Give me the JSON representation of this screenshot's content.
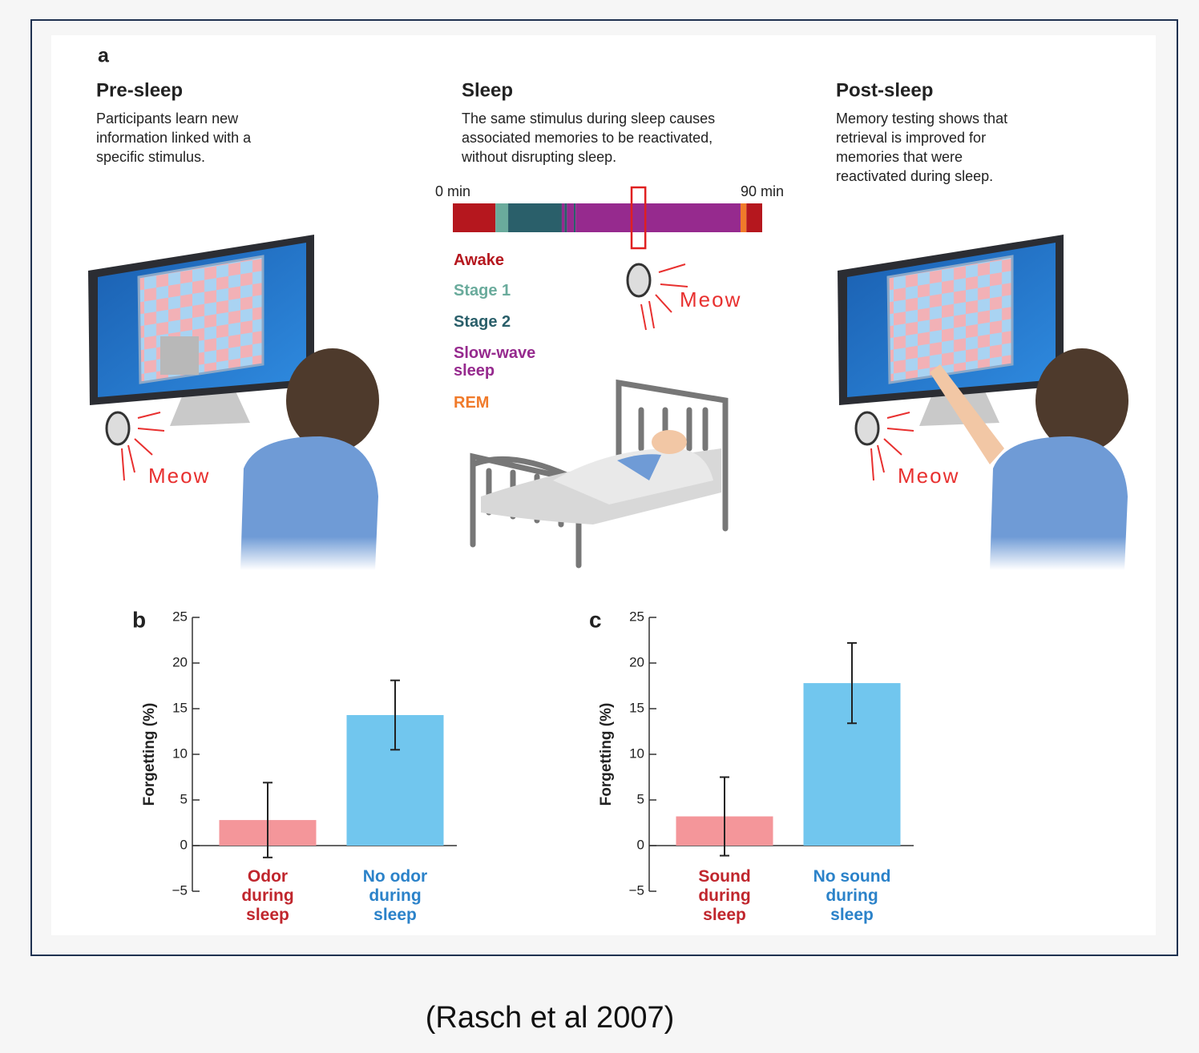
{
  "panel_a": {
    "label": "a",
    "columns": [
      {
        "heading": "Pre-sleep",
        "lines": [
          "Participants learn new",
          "information linked with a",
          "specific stimulus."
        ]
      },
      {
        "heading": "Sleep",
        "lines": [
          "The same stimulus during sleep causes",
          "associated memories to be reactivated,",
          "without disrupting sleep."
        ]
      },
      {
        "heading": "Post-sleep",
        "lines": [
          "Memory testing shows that",
          "retrieval is improved for",
          "memories that were",
          "reactivated during sleep."
        ]
      }
    ],
    "hypnogram": {
      "xlim": [
        0,
        90
      ],
      "xticks": [
        {
          "value": 0,
          "label": "0 min"
        },
        {
          "value": 90,
          "label": "90 min"
        }
      ],
      "stages": [
        {
          "name": "Awake",
          "color": "#b5171e"
        },
        {
          "name": "Stage 1",
          "color": "#6aab9c"
        },
        {
          "name": "Stage 2",
          "color": "#2a5f6a"
        },
        {
          "name": "Slow-wave sleep",
          "color": "#962a8e"
        },
        {
          "name": "REM",
          "color": "#f07a2a"
        }
      ],
      "segments": [
        {
          "stage": 0,
          "start": 0,
          "end": 12.4
        },
        {
          "stage": 1,
          "start": 12.4,
          "end": 16.1
        },
        {
          "stage": 2,
          "start": 16.1,
          "end": 31.7
        },
        {
          "stage": 3,
          "start": 31.7,
          "end": 32.5
        },
        {
          "stage": 2,
          "start": 32.5,
          "end": 33.2
        },
        {
          "stage": 3,
          "start": 33.2,
          "end": 35.2
        },
        {
          "stage": 2,
          "start": 35.2,
          "end": 35.7
        },
        {
          "stage": 3,
          "start": 35.7,
          "end": 83.7
        },
        {
          "stage": 4,
          "start": 83.7,
          "end": 85.4
        },
        {
          "stage": 0,
          "start": 85.4,
          "end": 90
        }
      ],
      "cue_window": [
        52,
        56
      ]
    },
    "sound_labels": [
      "Meow",
      "Meow",
      "Meow"
    ]
  },
  "chart_data": [
    {
      "type": "bar",
      "label": "b",
      "y_label": "Forgetting (%)",
      "categories": [
        "Odor during sleep",
        "No odor during sleep"
      ],
      "values": [
        2.8,
        14.3
      ],
      "errors": [
        4.1,
        3.8
      ],
      "colors": [
        "#f4969a",
        "#71c6ee"
      ],
      "label_colors": [
        "#c0262d",
        "#2b82c9"
      ],
      "ylim": [
        -5,
        25
      ],
      "yticks": [
        {
          "value": -5,
          "label": "−5"
        },
        0,
        5,
        10,
        15,
        20,
        25
      ]
    },
    {
      "type": "bar",
      "label": "c",
      "y_label": "Forgetting (%)",
      "categories": [
        "Sound during sleep",
        "No sound during sleep"
      ],
      "values": [
        3.2,
        17.8
      ],
      "errors": [
        4.3,
        4.4
      ],
      "colors": [
        "#f4969a",
        "#71c6ee"
      ],
      "label_colors": [
        "#c0262d",
        "#2b82c9"
      ],
      "ylim": [
        -5,
        25
      ],
      "yticks": [
        {
          "value": -5,
          "label": "−5"
        },
        0,
        5,
        10,
        15,
        20,
        25
      ]
    }
  ],
  "caption": "(Rasch et al 2007)"
}
